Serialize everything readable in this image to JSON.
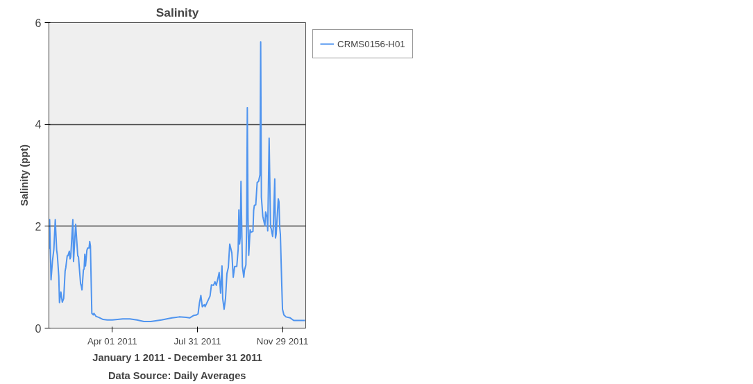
{
  "chart_data": {
    "type": "line",
    "title": "Salinity",
    "xlabel": "January 1 2011 - December 31 2011",
    "ylabel": "Salinity (ppt)",
    "annotations": [
      "Data Source: Daily Averages"
    ],
    "xlim": [
      "2011-01-01",
      "2012-01-01"
    ],
    "ylim": [
      0,
      6
    ],
    "yticks": [
      0,
      2,
      4,
      6
    ],
    "xticks": [
      {
        "value": "2011-04-01",
        "label": "Apr 01 2011"
      },
      {
        "value": "2011-07-31",
        "label": "Jul 31 2011"
      },
      {
        "value": "2011-11-29",
        "label": "Nov 29 2011"
      }
    ],
    "grid": "y",
    "legend": "top right",
    "marker": "none",
    "line_style": "solid",
    "x": [
      "2011-01-01",
      "2011-01-02",
      "2011-01-04",
      "2011-01-06",
      "2011-01-08",
      "2011-01-10",
      "2011-01-12",
      "2011-01-13",
      "2011-01-15",
      "2011-01-16",
      "2011-01-18",
      "2011-01-20",
      "2011-01-22",
      "2011-01-24",
      "2011-01-25",
      "2011-01-27",
      "2011-01-28",
      "2011-01-30",
      "2011-01-31",
      "2011-02-01",
      "2011-02-04",
      "2011-02-05",
      "2011-02-08",
      "2011-02-11",
      "2011-02-12",
      "2011-02-15",
      "2011-02-16",
      "2011-02-17",
      "2011-02-19",
      "2011-02-20",
      "2011-02-21",
      "2011-02-22",
      "2011-02-24",
      "2011-02-25",
      "2011-02-27",
      "2011-02-28",
      "2011-03-01",
      "2011-03-03",
      "2011-03-05",
      "2011-03-06",
      "2011-03-09",
      "2011-03-13",
      "2011-03-19",
      "2011-03-25",
      "2011-04-01",
      "2011-04-16",
      "2011-04-26",
      "2011-05-06",
      "2011-05-16",
      "2011-05-26",
      "2011-06-10",
      "2011-06-25",
      "2011-07-05",
      "2011-07-15",
      "2011-07-20",
      "2011-07-26",
      "2011-07-30",
      "2011-08-01",
      "2011-08-03",
      "2011-08-05",
      "2011-08-07",
      "2011-08-10",
      "2011-08-11",
      "2011-08-14",
      "2011-08-18",
      "2011-08-20",
      "2011-08-23",
      "2011-08-25",
      "2011-08-27",
      "2011-08-31",
      "2011-09-02",
      "2011-09-04",
      "2011-09-05",
      "2011-09-07",
      "2011-09-09",
      "2011-09-11",
      "2011-09-13",
      "2011-09-15",
      "2011-09-18",
      "2011-09-20",
      "2011-09-22",
      "2011-09-25",
      "2011-09-27",
      "2011-09-28",
      "2011-09-29",
      "2011-09-30",
      "2011-10-01",
      "2011-10-03",
      "2011-10-05",
      "2011-10-06",
      "2011-10-08",
      "2011-10-09",
      "2011-10-10",
      "2011-10-11",
      "2011-10-12",
      "2011-10-14",
      "2011-10-15",
      "2011-10-18",
      "2011-10-19",
      "2011-10-20",
      "2011-10-22",
      "2011-10-24",
      "2011-10-26",
      "2011-10-28",
      "2011-10-29",
      "2011-10-30",
      "2011-11-01",
      "2011-11-02",
      "2011-11-04",
      "2011-11-05",
      "2011-11-07",
      "2011-11-08",
      "2011-11-10",
      "2011-11-12",
      "2011-11-13",
      "2011-11-15",
      "2011-11-16",
      "2011-11-18",
      "2011-11-19",
      "2011-11-20",
      "2011-11-23",
      "2011-11-24",
      "2011-11-25",
      "2011-11-26",
      "2011-11-28",
      "2011-11-29",
      "2011-12-01",
      "2011-12-04",
      "2011-12-10",
      "2011-12-15",
      "2011-12-31"
    ],
    "series": [
      {
        "name": "CRMS0156-H01",
        "color": "#4f94ef",
        "values": [
          1.55,
          2.13,
          0.95,
          1.31,
          1.55,
          2.13,
          1.53,
          1.43,
          1.02,
          0.5,
          0.71,
          0.51,
          0.58,
          1.12,
          1.19,
          1.42,
          1.42,
          1.51,
          1.36,
          1.4,
          2.13,
          1.31,
          2.04,
          1.42,
          1.4,
          0.87,
          0.83,
          0.75,
          1.14,
          1.16,
          1.45,
          1.22,
          1.53,
          1.57,
          1.57,
          1.7,
          1.61,
          0.29,
          0.26,
          0.29,
          0.23,
          0.21,
          0.17,
          0.16,
          0.16,
          0.18,
          0.18,
          0.16,
          0.13,
          0.13,
          0.16,
          0.2,
          0.22,
          0.21,
          0.2,
          0.25,
          0.26,
          0.28,
          0.5,
          0.64,
          0.42,
          0.46,
          0.42,
          0.51,
          0.63,
          0.85,
          0.84,
          0.91,
          0.84,
          1.09,
          0.69,
          1.22,
          0.58,
          0.37,
          0.58,
          1.07,
          1.19,
          1.65,
          1.48,
          1.0,
          1.21,
          1.21,
          1.55,
          2.32,
          1.65,
          1.79,
          2.88,
          1.21,
          1.0,
          1.14,
          1.24,
          1.94,
          4.33,
          2.18,
          1.43,
          1.93,
          1.88,
          1.9,
          2.31,
          2.41,
          2.42,
          2.86,
          2.88,
          3.01,
          5.62,
          2.57,
          2.2,
          2.13,
          2.01,
          2.28,
          2.18,
          1.91,
          3.73,
          1.99,
          1.95,
          1.8,
          1.99,
          2.93,
          1.77,
          1.84,
          2.54,
          2.48,
          1.99,
          1.84,
          0.83,
          0.37,
          0.26,
          0.22,
          0.2,
          0.15,
          0.15
        ]
      }
    ]
  }
}
